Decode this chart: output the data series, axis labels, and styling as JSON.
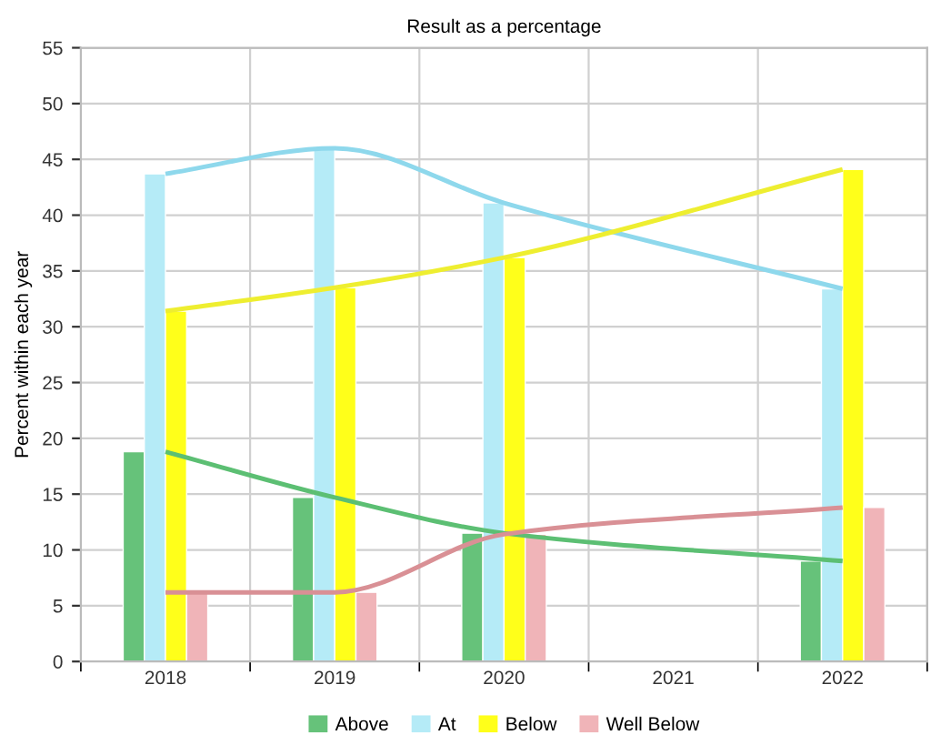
{
  "chart_data": {
    "type": "bar",
    "title": "Result as a percentage",
    "ylabel": "Percent within each year",
    "categories": [
      "2018",
      "2019",
      "2020",
      "2021",
      "2022"
    ],
    "series": [
      {
        "name": "Above",
        "color": "#66c27a",
        "values": [
          18.8,
          14.7,
          11.5,
          null,
          9.0
        ]
      },
      {
        "name": "At",
        "color": "#b5ebf7",
        "values": [
          43.7,
          46.0,
          41.1,
          null,
          33.4
        ]
      },
      {
        "name": "Below",
        "color": "#ffff1a",
        "values": [
          31.4,
          33.5,
          36.2,
          null,
          44.1
        ]
      },
      {
        "name": "Well Below",
        "color": "#f0b4b8",
        "values": [
          6.2,
          6.2,
          11.4,
          null,
          13.8
        ]
      },
      {
        "type": "line",
        "color": "#5cbf73",
        "values": [
          18.8,
          14.7,
          11.5,
          null,
          9.0
        ]
      },
      {
        "type": "line",
        "color": "#8ed8ec",
        "values": [
          43.7,
          46.0,
          41.1,
          null,
          33.4
        ]
      },
      {
        "type": "line",
        "color": "#eeee30",
        "values": [
          31.4,
          33.5,
          36.2,
          null,
          44.1
        ]
      },
      {
        "type": "line",
        "color": "#d99095",
        "values": [
          6.2,
          6.2,
          11.4,
          null,
          13.8
        ]
      }
    ],
    "ylim": [
      0,
      55
    ],
    "yticks": [
      0,
      5,
      10,
      15,
      20,
      25,
      30,
      35,
      40,
      45,
      50,
      55
    ],
    "grid": true,
    "legend": "bottom"
  }
}
